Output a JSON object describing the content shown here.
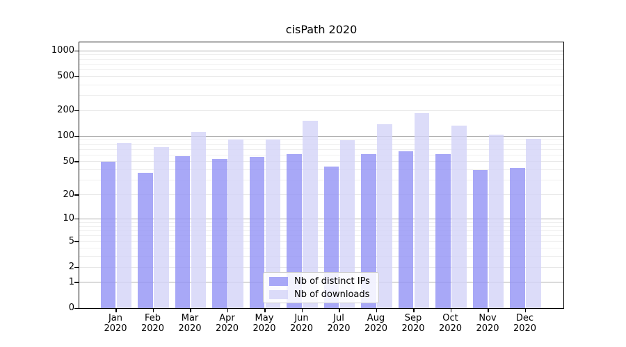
{
  "chart_data": {
    "type": "bar",
    "title": "cisPath 2020",
    "categories": [
      "Jan 2020",
      "Feb 2020",
      "Mar 2020",
      "Apr 2020",
      "May 2020",
      "Jun 2020",
      "Jul 2020",
      "Aug 2020",
      "Sep 2020",
      "Oct 2020",
      "Nov 2020",
      "Dec 2020"
    ],
    "series": [
      {
        "name": "Nb of distinct IPs",
        "color": "#9292f5",
        "values": [
          50,
          37,
          58,
          54,
          57,
          62,
          44,
          62,
          66,
          61,
          40,
          42
        ]
      },
      {
        "name": "Nb of downloads",
        "color": "#d3d3f7",
        "values": [
          84,
          75,
          113,
          91,
          92,
          153,
          90,
          139,
          188,
          133,
          105,
          93
        ]
      }
    ],
    "xlabel": "",
    "ylabel": "",
    "yticks": [
      0,
      1,
      2,
      5,
      10,
      20,
      50,
      100,
      200,
      500,
      1000
    ],
    "yscale": "log10(1+y)",
    "ylim": [
      0,
      1250
    ],
    "grid": true,
    "grid_major_color": "#ababab",
    "grid_minor_color": "#efefef",
    "legend_position": "lower center",
    "background": "#ffffff",
    "axis_color": "#000000"
  }
}
